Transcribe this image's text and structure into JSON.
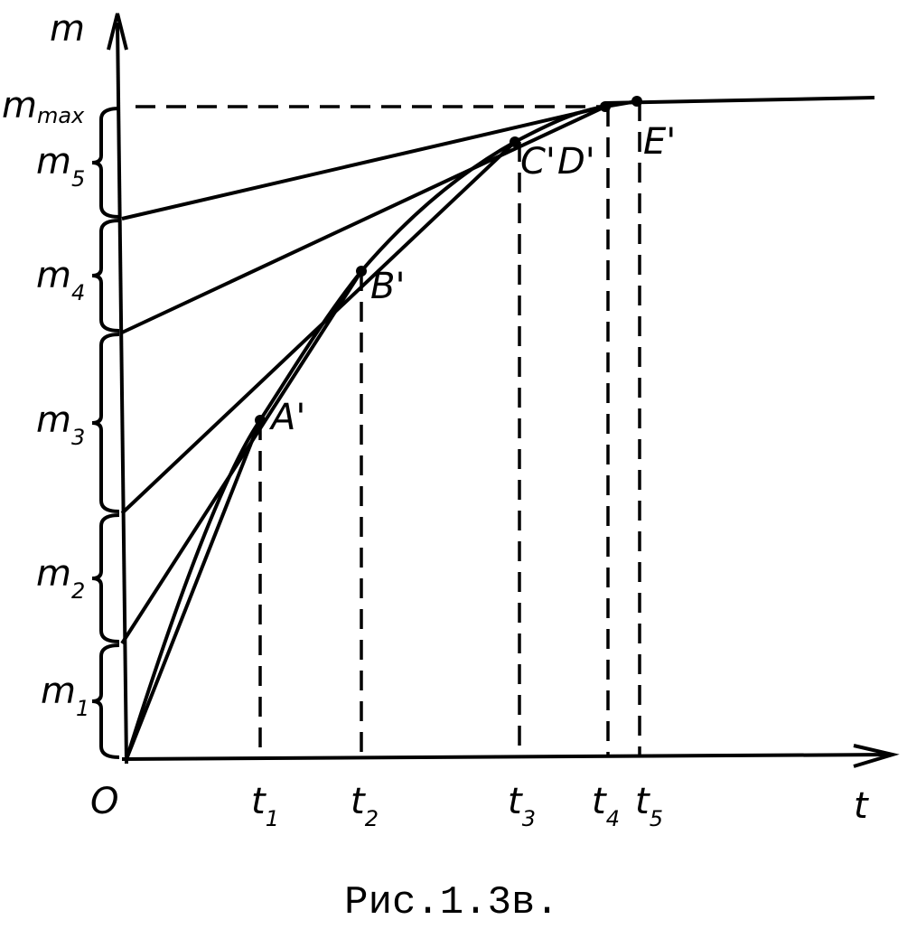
{
  "axes": {
    "y_label": "m",
    "x_label": "t",
    "origin": "O"
  },
  "m_labels": [
    {
      "base": "m",
      "sub": "max"
    },
    {
      "base": "m",
      "sub": "5"
    },
    {
      "base": "m",
      "sub": "4"
    },
    {
      "base": "m",
      "sub": "3"
    },
    {
      "base": "m",
      "sub": "2"
    },
    {
      "base": "m",
      "sub": "1"
    }
  ],
  "t_labels": [
    {
      "base": "t",
      "sub": "1"
    },
    {
      "base": "t",
      "sub": "2"
    },
    {
      "base": "t",
      "sub": "3"
    },
    {
      "base": "t",
      "sub": "4"
    },
    {
      "base": "t",
      "sub": "5"
    }
  ],
  "points": [
    "A'",
    "B'",
    "C'",
    "D'",
    "E'"
  ],
  "caption": "Рис.1.3в."
}
